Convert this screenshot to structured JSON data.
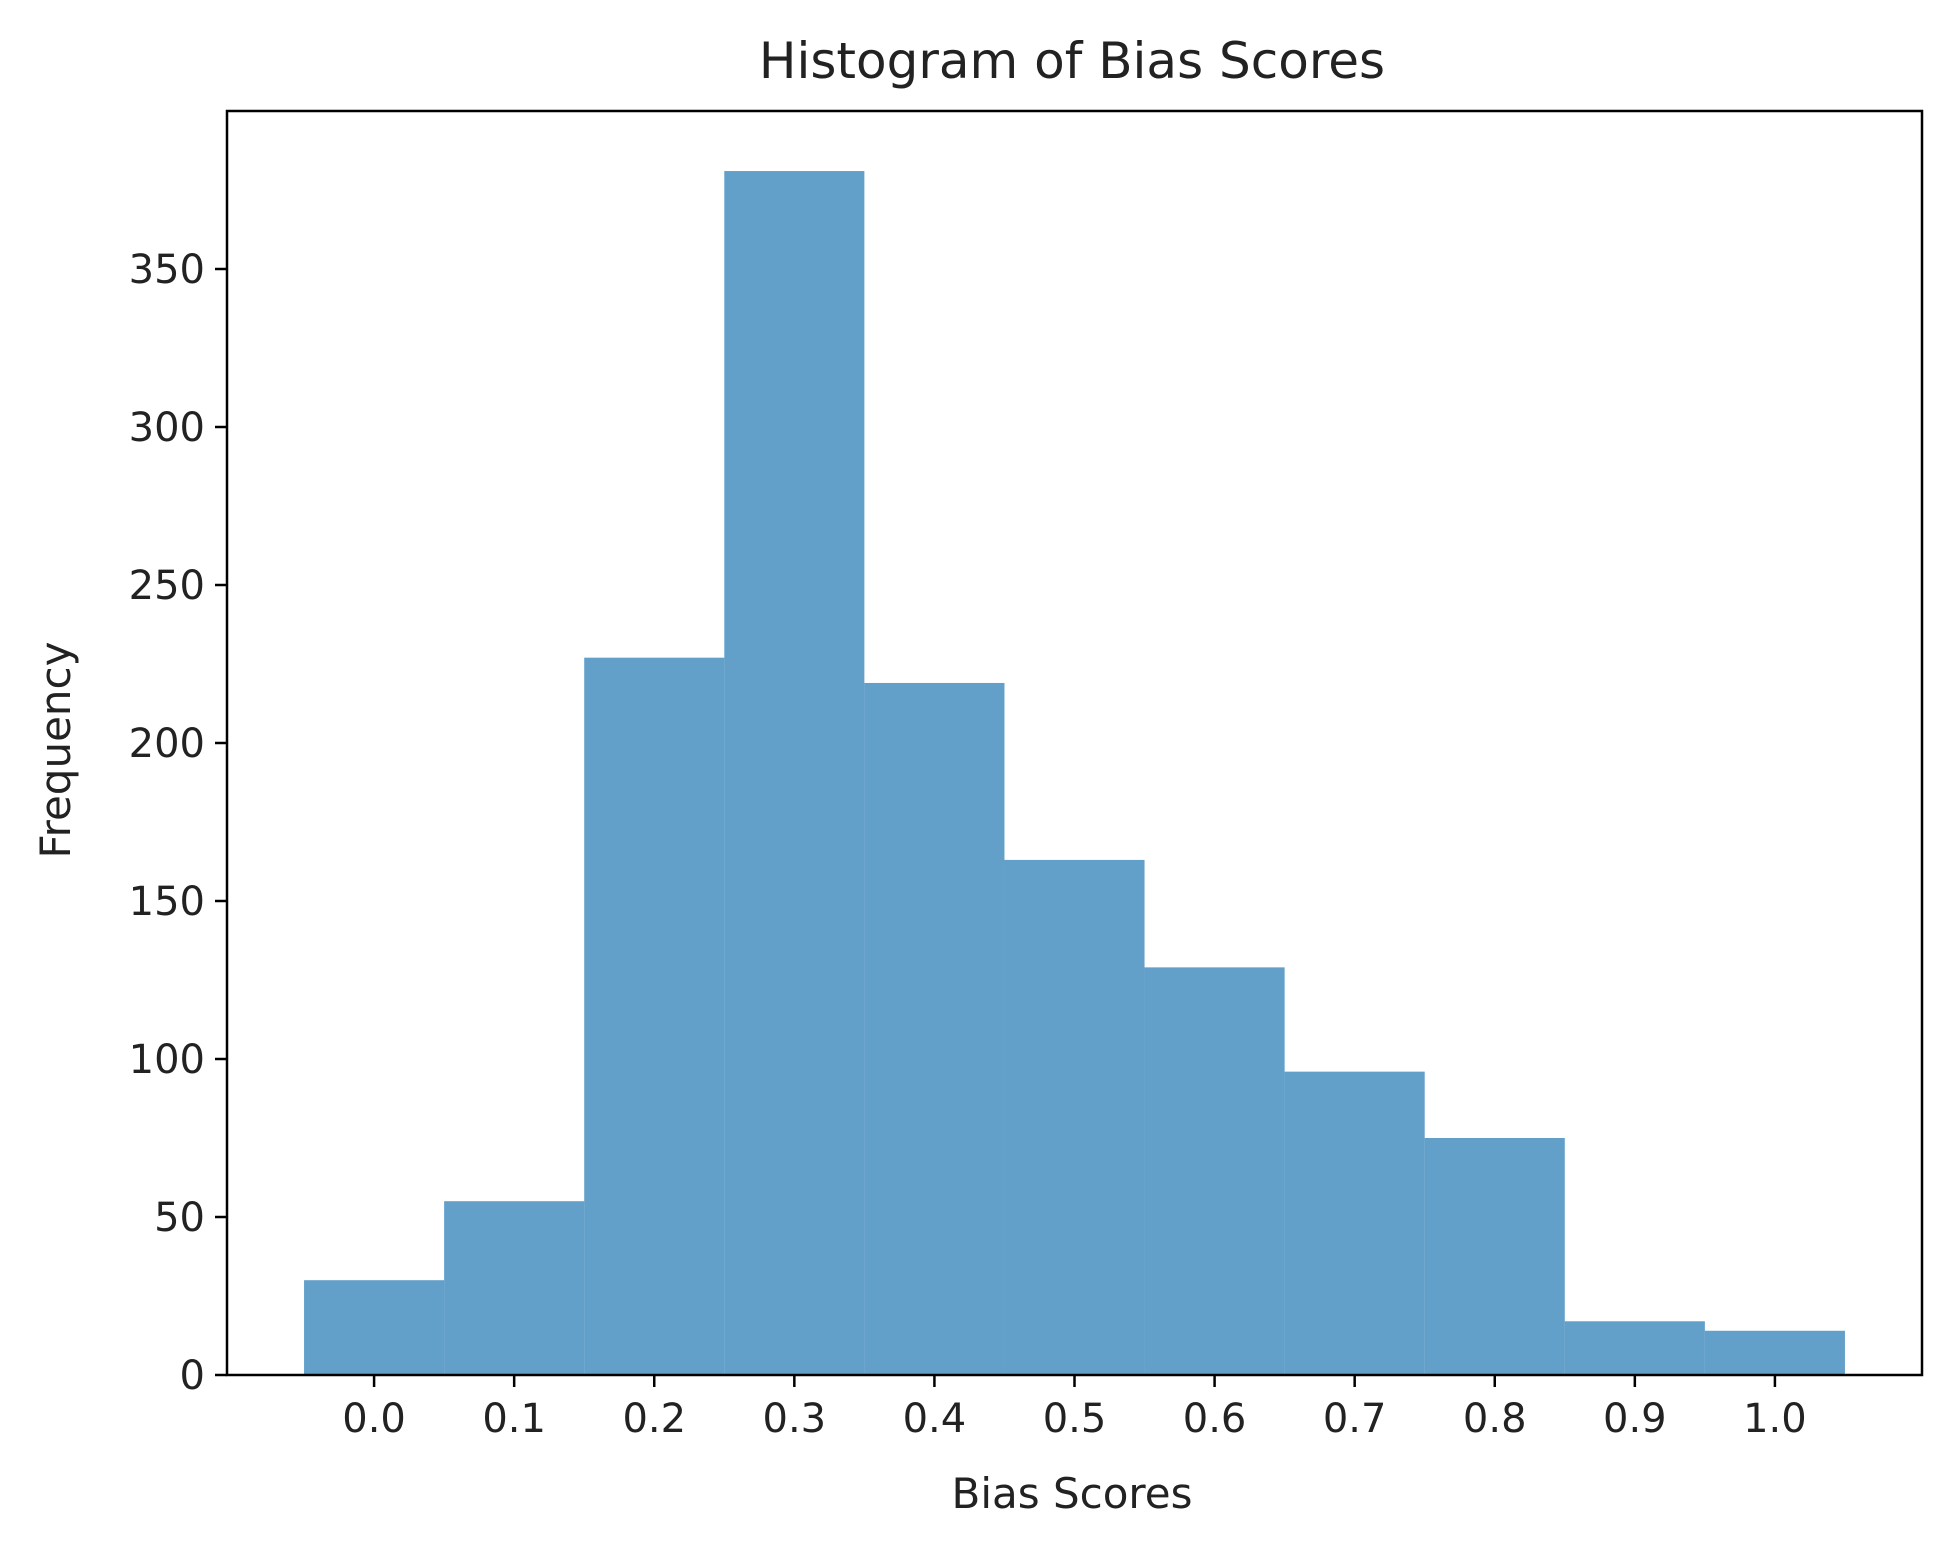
{
  "chart_data": {
    "type": "bar",
    "title": "Histogram of Bias Scores",
    "xlabel": "Bias Scores",
    "ylabel": "Frequency",
    "bins": [
      {
        "start": -0.05,
        "end": 0.05,
        "count": 30
      },
      {
        "start": 0.05,
        "end": 0.15,
        "count": 55
      },
      {
        "start": 0.15,
        "end": 0.25,
        "count": 227
      },
      {
        "start": 0.25,
        "end": 0.35,
        "count": 381
      },
      {
        "start": 0.35,
        "end": 0.45,
        "count": 219
      },
      {
        "start": 0.45,
        "end": 0.55,
        "count": 163
      },
      {
        "start": 0.55,
        "end": 0.65,
        "count": 129
      },
      {
        "start": 0.65,
        "end": 0.75,
        "count": 96
      },
      {
        "start": 0.75,
        "end": 0.85,
        "count": 75
      },
      {
        "start": 0.85,
        "end": 0.95,
        "count": 17
      },
      {
        "start": 0.95,
        "end": 1.05,
        "count": 14
      }
    ],
    "xlim": [
      -0.105,
      1.105
    ],
    "ylim": [
      0,
      400
    ],
    "xticks": [
      0.0,
      0.1,
      0.2,
      0.3,
      0.4,
      0.5,
      0.6,
      0.7,
      0.8,
      0.9,
      1.0
    ],
    "xtick_labels": [
      "0.0",
      "0.1",
      "0.2",
      "0.3",
      "0.4",
      "0.5",
      "0.6",
      "0.7",
      "0.8",
      "0.9",
      "1.0"
    ],
    "yticks": [
      0,
      50,
      100,
      150,
      200,
      250,
      300,
      350
    ],
    "ytick_labels": [
      "0",
      "50",
      "100",
      "150",
      "200",
      "250",
      "300",
      "350"
    ],
    "bar_color": "#1f77b4",
    "bar_alpha": 0.7,
    "grid": false,
    "legend": false
  }
}
